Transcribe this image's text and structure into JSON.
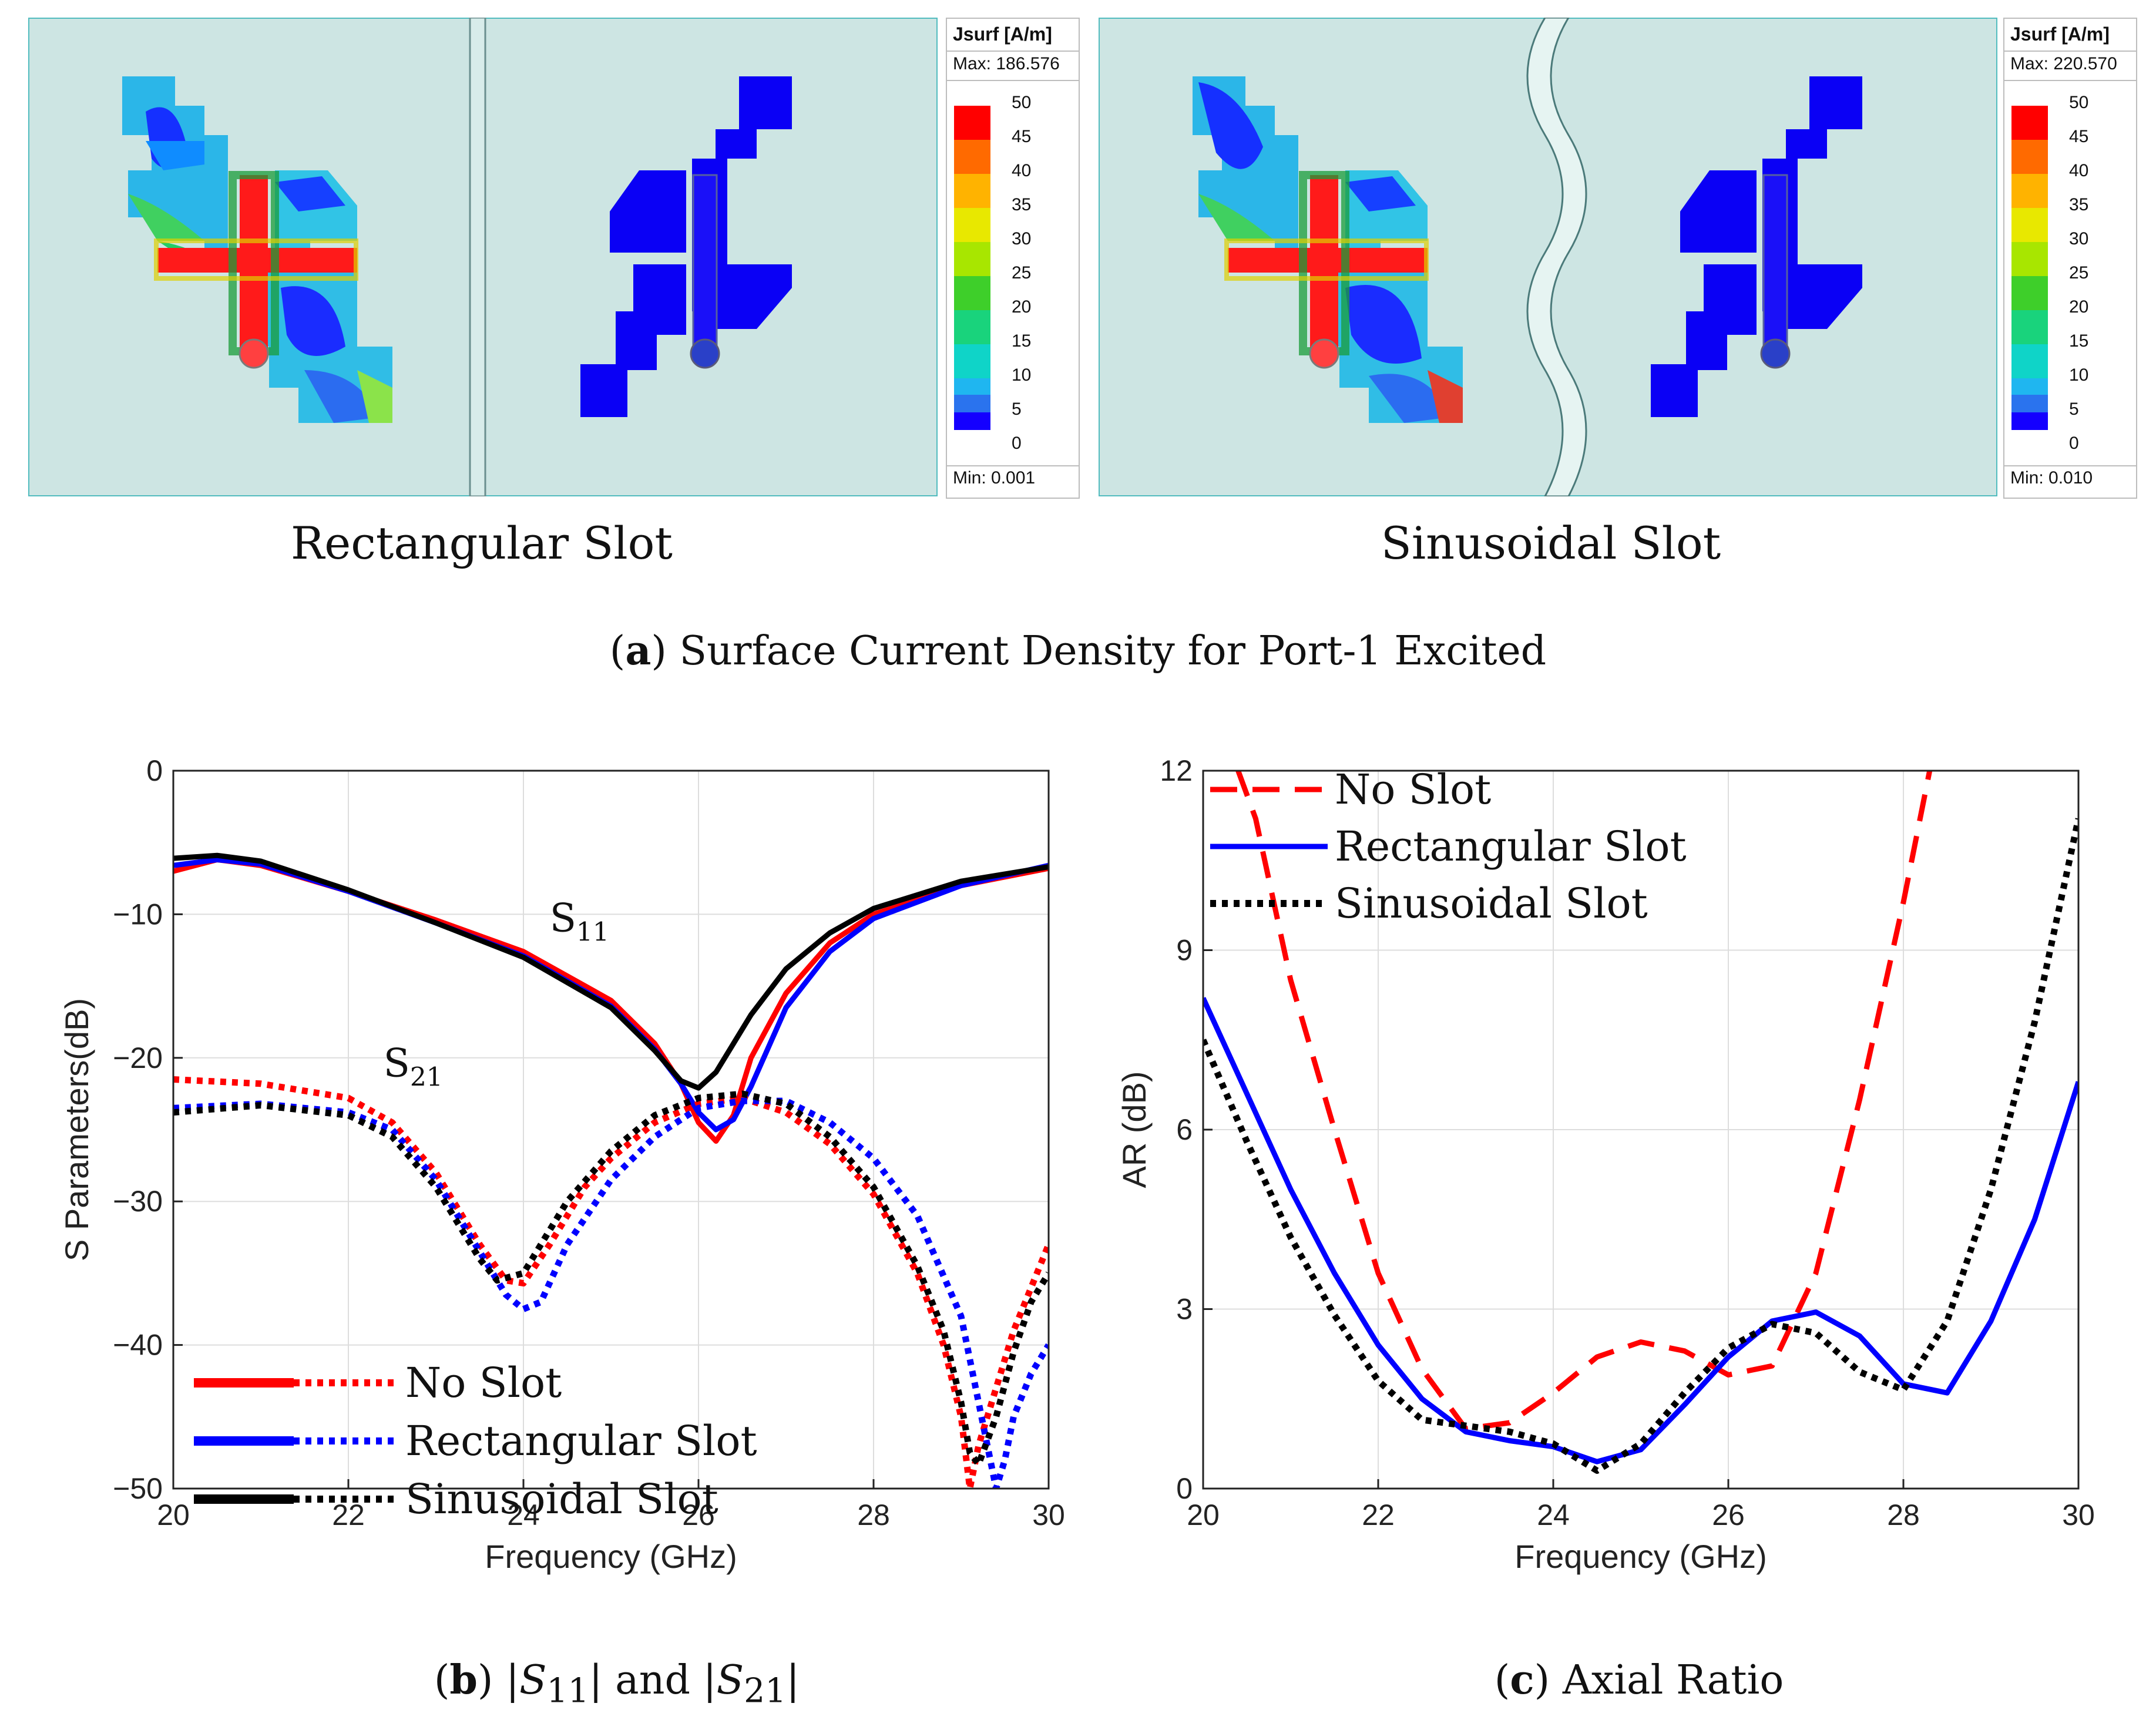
{
  "panel_a": {
    "caption_letter": "a",
    "caption_text": "Surface Current Density for Port-1 Excited",
    "left": {
      "label": "Rectangular Slot",
      "legend_title": "Jsurf [A/m]",
      "max": "Max: 186.576",
      "min": "Min:  0.001"
    },
    "right": {
      "label": "Sinusoidal Slot",
      "legend_title": "Jsurf [A/m]",
      "max": "Max: 220.570",
      "min": "Min:  0.010"
    },
    "scale_values": [
      "50",
      "45",
      "40",
      "35",
      "30",
      "25",
      "20",
      "15",
      "10",
      "5",
      "0"
    ],
    "scale_colors": [
      "#ff0000",
      "#ff6a00",
      "#ffb300",
      "#e8e800",
      "#a8e600",
      "#3ecf2a",
      "#19d37c",
      "#0fd4c8",
      "#1fb6f0",
      "#2a73ee",
      "#1400ff"
    ]
  },
  "chart_data": [
    {
      "type": "line",
      "caption_letter": "b",
      "caption_plain": "|S11| and |S21|",
      "xlabel": "Frequency (GHz)",
      "ylabel": "S Parameters(dB)",
      "xlim": [
        20,
        30
      ],
      "ylim": [
        -50,
        0
      ],
      "xticks": [
        20,
        22,
        24,
        26,
        28,
        30
      ],
      "yticks": [
        0,
        -10,
        -20,
        -30,
        -40,
        -50
      ],
      "xtick_labels": [
        "20",
        "22",
        "24",
        "26",
        "28",
        "30"
      ],
      "ytick_labels": [
        "0",
        "−10",
        "−20",
        "−30",
        "−40",
        "−50"
      ],
      "grid": true,
      "annotations": [
        {
          "base": "S",
          "sub": "11",
          "x": 24.3,
          "y": -11.2
        },
        {
          "base": "S",
          "sub": "21",
          "x": 22.4,
          "y": -21.3
        }
      ],
      "legend": {
        "position": "bottom-left",
        "entries": [
          "No Slot",
          "Rectangular Slot",
          "Sinusoidal Slot"
        ]
      },
      "series": [
        {
          "name": "No Slot S11",
          "color": "#ff0000",
          "dash": "solid",
          "x": [
            20,
            20.5,
            21,
            22,
            23,
            24,
            25,
            25.5,
            25.8,
            26,
            26.2,
            26.4,
            26.6,
            27,
            27.5,
            28,
            29,
            30
          ],
          "y": [
            -7,
            -6.2,
            -6.6,
            -8.4,
            -10.4,
            -12.6,
            -16,
            -19,
            -21.8,
            -24.5,
            -25.8,
            -24,
            -20,
            -15.5,
            -12,
            -10,
            -8,
            -6.8
          ]
        },
        {
          "name": "Rectangular Slot S11",
          "color": "#0000ff",
          "dash": "solid",
          "x": [
            20,
            20.5,
            21,
            22,
            23,
            24,
            25,
            25.5,
            25.8,
            26,
            26.2,
            26.4,
            26.6,
            27,
            27.5,
            28,
            29,
            30
          ],
          "y": [
            -6.6,
            -6.2,
            -6.5,
            -8.4,
            -10.6,
            -12.9,
            -16.4,
            -19.4,
            -21.8,
            -23.8,
            -25,
            -24.3,
            -22,
            -16.5,
            -12.6,
            -10.3,
            -8,
            -6.6
          ]
        },
        {
          "name": "Sinusoidal Slot S11",
          "color": "#000000",
          "dash": "solid",
          "x": [
            20,
            20.5,
            21,
            22,
            23,
            24,
            25,
            25.5,
            25.8,
            26,
            26.2,
            26.4,
            26.6,
            27,
            27.5,
            28,
            29,
            30
          ],
          "y": [
            -6.1,
            -5.9,
            -6.3,
            -8.3,
            -10.6,
            -13,
            -16.5,
            -19.5,
            -21.6,
            -22.1,
            -21,
            -19,
            -17,
            -13.8,
            -11.3,
            -9.6,
            -7.7,
            -6.7
          ]
        },
        {
          "name": "No Slot S21",
          "color": "#ff0000",
          "dash": "dot",
          "x": [
            20,
            21,
            22,
            22.5,
            23,
            23.5,
            23.8,
            24,
            24.3,
            24.7,
            25,
            25.5,
            26,
            26.5,
            27,
            27.5,
            28,
            28.5,
            28.8,
            29,
            29.1,
            29.2,
            29.4,
            29.6,
            30
          ],
          "y": [
            -21.5,
            -21.8,
            -22.8,
            -24.5,
            -28,
            -33,
            -35.5,
            -35.7,
            -33,
            -29,
            -27,
            -24.5,
            -23.2,
            -22.8,
            -23.8,
            -26,
            -29.5,
            -35,
            -40,
            -45,
            -50,
            -47,
            -43,
            -39,
            -33
          ]
        },
        {
          "name": "Rectangular Slot S21",
          "color": "#0000ff",
          "dash": "dot",
          "x": [
            20,
            21,
            22,
            22.5,
            23,
            23.5,
            23.8,
            24,
            24.2,
            24.5,
            25,
            25.5,
            26,
            26.5,
            27,
            27.5,
            28,
            28.5,
            29,
            29.2,
            29.4,
            29.5,
            29.6,
            29.8,
            30
          ],
          "y": [
            -23.5,
            -23.2,
            -23.8,
            -25,
            -28.5,
            -33.5,
            -36.5,
            -37.5,
            -37,
            -33,
            -28.5,
            -25.5,
            -23.5,
            -23,
            -23,
            -24.5,
            -27,
            -31,
            -38,
            -44,
            -50,
            -48,
            -45,
            -42,
            -40
          ]
        },
        {
          "name": "Sinusoidal Slot S21",
          "color": "#000000",
          "dash": "dot",
          "x": [
            20,
            21,
            22,
            22.5,
            23,
            23.5,
            23.7,
            24,
            24.5,
            25,
            25.5,
            26,
            26.5,
            27,
            27.5,
            28,
            28.5,
            28.8,
            29,
            29.1,
            29.2,
            29.4,
            29.6,
            29.8,
            30
          ],
          "y": [
            -23.8,
            -23.3,
            -24,
            -25.5,
            -29,
            -34,
            -35.5,
            -35,
            -30,
            -26.5,
            -24,
            -22.8,
            -22.5,
            -23.2,
            -25.5,
            -29,
            -34.5,
            -39,
            -44,
            -47.5,
            -48.3,
            -45,
            -40.5,
            -37,
            -35
          ]
        }
      ]
    },
    {
      "type": "line",
      "caption_letter": "c",
      "caption_text": "Axial Ratio",
      "xlabel": "Frequency (GHz)",
      "ylabel": "AR (dB)",
      "xlim": [
        20,
        30
      ],
      "ylim": [
        0,
        12
      ],
      "xticks": [
        20,
        22,
        24,
        26,
        28,
        30
      ],
      "yticks": [
        0,
        3,
        6,
        9,
        12
      ],
      "xtick_labels": [
        "20",
        "22",
        "24",
        "26",
        "28",
        "30"
      ],
      "ytick_labels": [
        "0",
        "3",
        "6",
        "9",
        "12"
      ],
      "grid": true,
      "legend": {
        "position": "top-left",
        "entries": [
          "No Slot",
          "Rectangular Slot",
          "Sinusoidal Slot"
        ]
      },
      "series": [
        {
          "name": "No Slot",
          "color": "#ff0000",
          "dash": "dash",
          "x": [
            20.4,
            20.6,
            21,
            21.5,
            22,
            22.5,
            23,
            23.5,
            24,
            24.5,
            25,
            25.5,
            26,
            26.5,
            27,
            27.5,
            28,
            28.3
          ],
          "y": [
            12,
            11.2,
            8.5,
            6,
            3.6,
            2,
            1,
            1.1,
            1.6,
            2.2,
            2.45,
            2.3,
            1.9,
            2.05,
            3.6,
            6.5,
            9.8,
            12
          ]
        },
        {
          "name": "Rectangular Slot",
          "color": "#0000ff",
          "dash": "solid",
          "x": [
            20,
            20.5,
            21,
            21.5,
            22,
            22.5,
            23,
            23.5,
            24,
            24.5,
            25,
            25.5,
            26,
            26.5,
            27,
            27.5,
            28,
            28.5,
            29,
            29.5,
            30
          ],
          "y": [
            8.2,
            6.6,
            5,
            3.6,
            2.4,
            1.5,
            0.95,
            0.8,
            0.7,
            0.45,
            0.65,
            1.4,
            2.2,
            2.8,
            2.95,
            2.55,
            1.75,
            1.6,
            2.8,
            4.5,
            6.8
          ]
        },
        {
          "name": "Sinusoidal Slot",
          "color": "#000000",
          "dash": "dot",
          "x": [
            20,
            20.5,
            21,
            21.5,
            22,
            22.5,
            23,
            23.5,
            24,
            24.5,
            25,
            25.5,
            26,
            26.5,
            27,
            27.5,
            28,
            28.5,
            29,
            29.5,
            30
          ],
          "y": [
            7.5,
            5.8,
            4.2,
            2.9,
            1.8,
            1.15,
            1.05,
            0.95,
            0.75,
            0.3,
            0.75,
            1.6,
            2.35,
            2.75,
            2.6,
            1.95,
            1.65,
            2.8,
            5,
            7.8,
            11.2
          ]
        }
      ]
    }
  ]
}
